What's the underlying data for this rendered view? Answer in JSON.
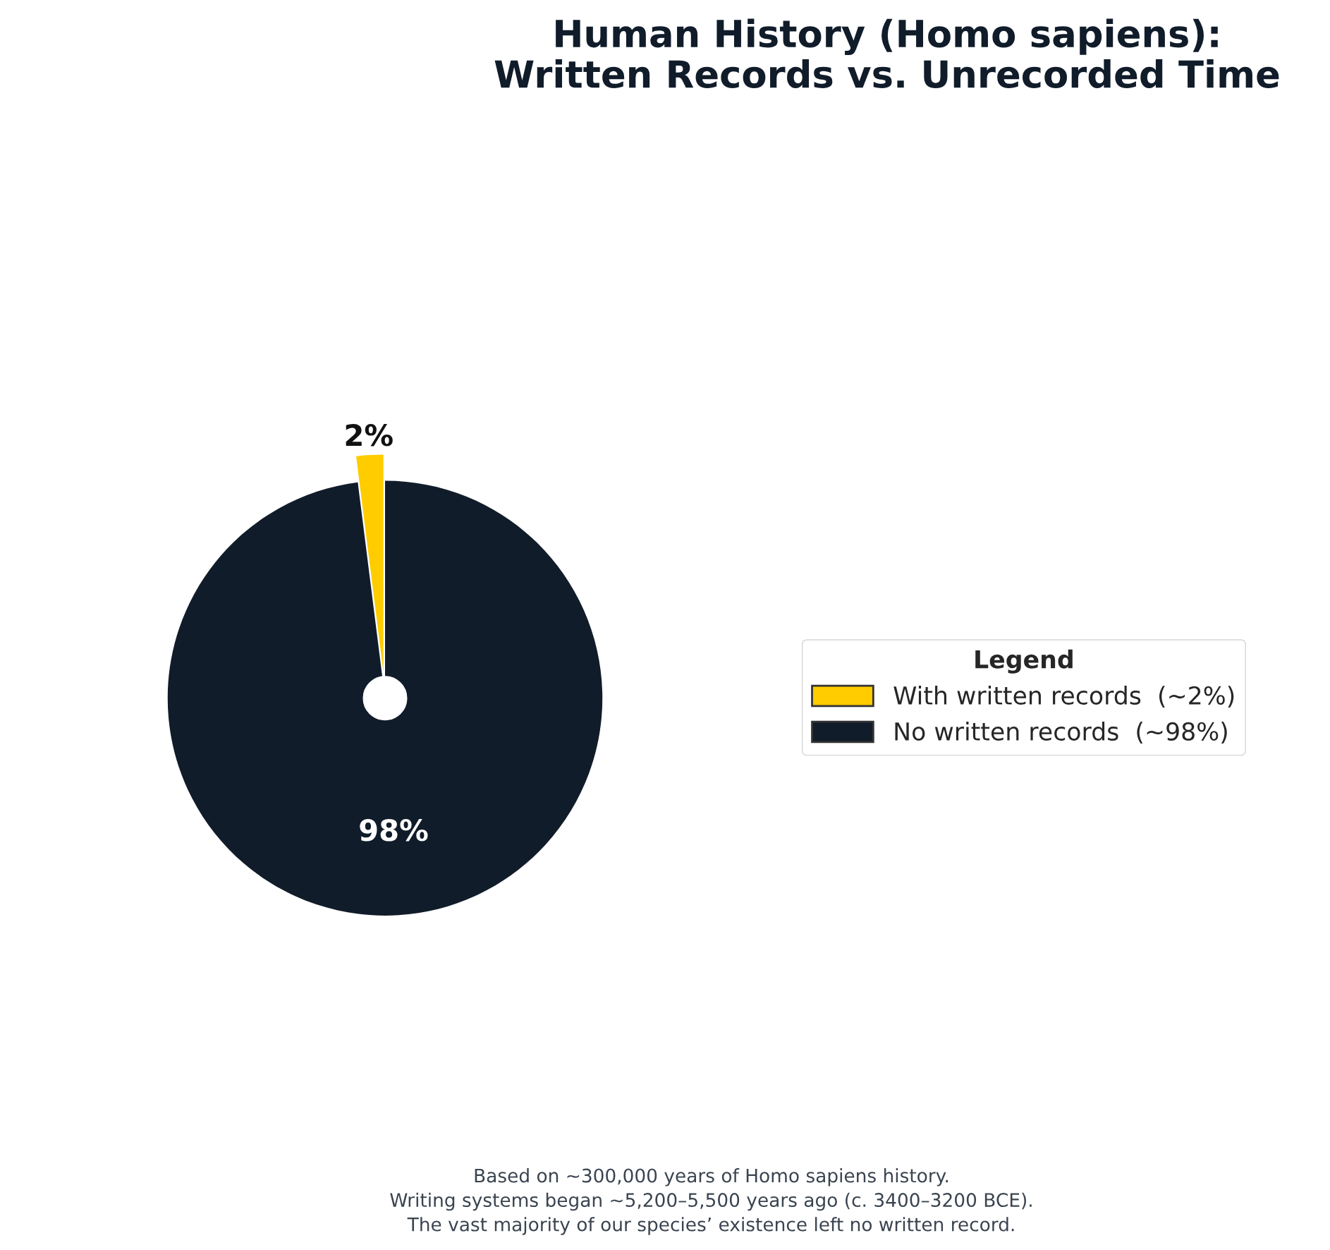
{
  "chart_data": {
    "type": "pie",
    "title": "Human History (Homo sapiens):\nWritten Records vs. Unrecorded Time",
    "categories": [
      "With written records  (~2%)",
      "No written records  (~98%)"
    ],
    "values": [
      2,
      98
    ],
    "colors": [
      "#ffcc00",
      "#111c2a"
    ],
    "value_labels": [
      "2%",
      "98%"
    ],
    "legend_title": "Legend",
    "legend": "right",
    "annotations": [
      "Based on ~300,000 years of Homo sapiens history.\nWriting systems began ~5,200–5,500 years ago (c. 3400–3200 BCE).\nThe vast majority of our species’ existence left no written record."
    ]
  }
}
